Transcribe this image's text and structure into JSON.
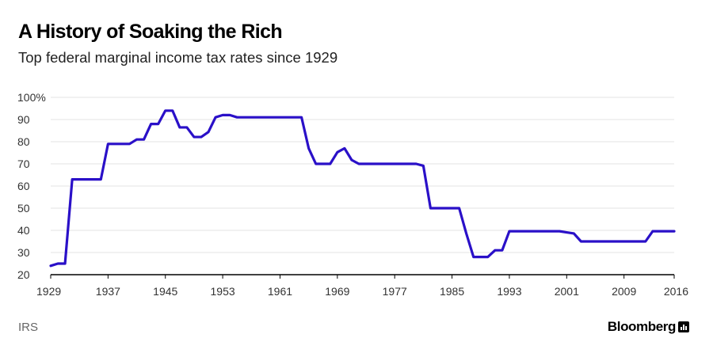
{
  "header": {
    "title": "A History of Soaking the Rich",
    "subtitle": "Top federal marginal income tax rates since 1929"
  },
  "footer": {
    "source": "IRS",
    "brand": "Bloomberg"
  },
  "colors": {
    "line": "#2a10c8",
    "grid": "#e3e3e3",
    "axis": "#000000",
    "tick_text": "#333333"
  },
  "chart_data": {
    "type": "line",
    "title": "A History of Soaking the Rich",
    "subtitle": "Top federal marginal income tax rates since 1929",
    "xlabel": "",
    "ylabel": "",
    "xlim": [
      1929,
      2016
    ],
    "ylim": [
      20,
      100
    ],
    "x_ticks": [
      1929,
      1937,
      1945,
      1953,
      1961,
      1969,
      1977,
      1985,
      1993,
      2001,
      2009,
      2016
    ],
    "y_ticks": [
      20,
      30,
      40,
      50,
      60,
      70,
      80,
      90,
      100
    ],
    "y_tick_labels": [
      "20",
      "30",
      "40",
      "50",
      "60",
      "70",
      "80",
      "90",
      "100%"
    ],
    "grid": true,
    "series": [
      {
        "x": [
          1929,
          1930,
          1931,
          1932,
          1933,
          1934,
          1935,
          1936,
          1937,
          1938,
          1939,
          1940,
          1941,
          1942,
          1943,
          1944,
          1945,
          1946,
          1947,
          1948,
          1949,
          1950,
          1951,
          1952,
          1953,
          1954,
          1955,
          1956,
          1957,
          1958,
          1959,
          1960,
          1961,
          1962,
          1963,
          1964,
          1965,
          1966,
          1967,
          1968,
          1969,
          1970,
          1971,
          1972,
          1973,
          1974,
          1975,
          1976,
          1977,
          1978,
          1979,
          1980,
          1981,
          1982,
          1983,
          1984,
          1985,
          1986,
          1987,
          1988,
          1989,
          1990,
          1991,
          1992,
          1993,
          1994,
          1995,
          1996,
          1997,
          1998,
          1999,
          2000,
          2001,
          2002,
          2003,
          2004,
          2005,
          2006,
          2007,
          2008,
          2009,
          2010,
          2011,
          2012,
          2013,
          2014,
          2015,
          2016
        ],
        "values": [
          24,
          25,
          25,
          63,
          63,
          63,
          63,
          63,
          79,
          79,
          79,
          79,
          81,
          81,
          88,
          88,
          94,
          94,
          86.45,
          86.45,
          82.13,
          82.13,
          84.36,
          91,
          92,
          92,
          91,
          91,
          91,
          91,
          91,
          91,
          91,
          91,
          91,
          91,
          77,
          70,
          70,
          70,
          75.25,
          77,
          71.75,
          70,
          70,
          70,
          70,
          70,
          70,
          70,
          70,
          70,
          69.13,
          50,
          50,
          50,
          50,
          50,
          38.5,
          28,
          28,
          28,
          31,
          31,
          39.6,
          39.6,
          39.6,
          39.6,
          39.6,
          39.6,
          39.6,
          39.6,
          39.1,
          38.6,
          35,
          35,
          35,
          35,
          35,
          35,
          35,
          35,
          35,
          35,
          39.6,
          39.6,
          39.6,
          39.6
        ]
      }
    ]
  }
}
